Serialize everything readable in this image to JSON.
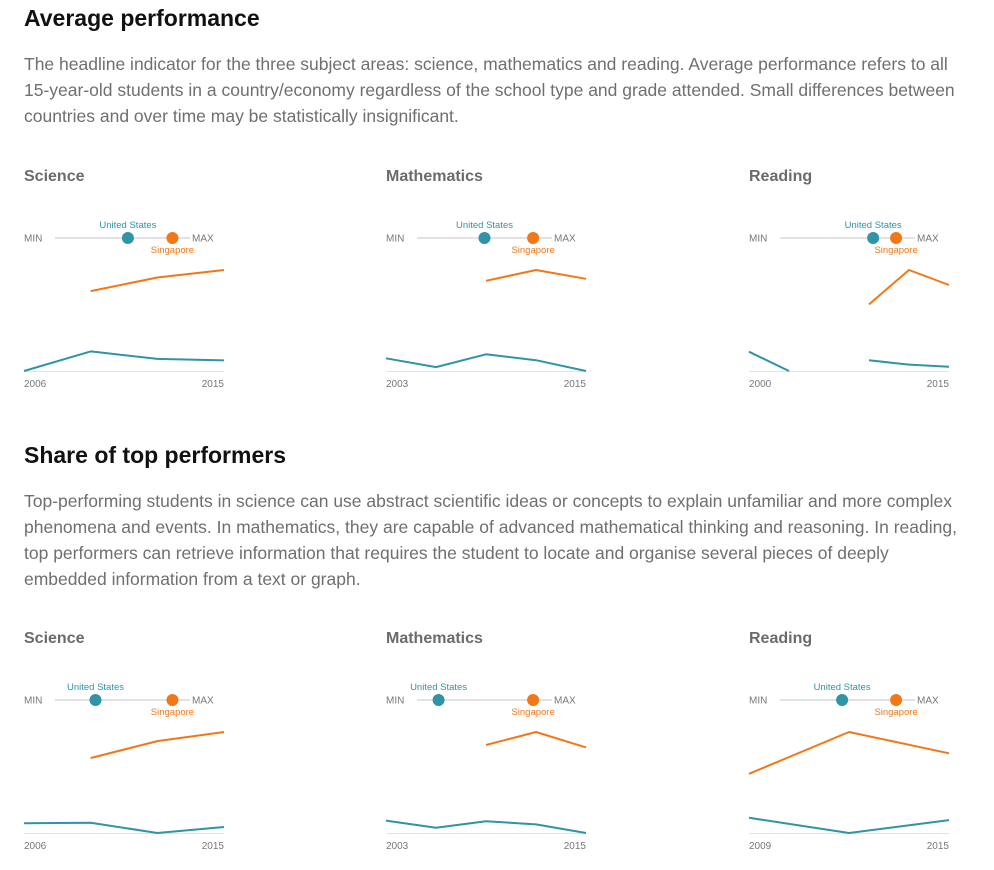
{
  "sections": [
    {
      "title": "Average performance",
      "description": "The headline indicator for the three subject areas: science, mathematics and reading. Average performance refers to all 15-year-old students in a country/economy regardless of the school type and grade attended. Small differences between countries and over time may be statistically insignificant.",
      "charts": [
        {
          "title": "Science",
          "min_label": "MIN",
          "max_label": "MAX",
          "us_position": 0.54,
          "sg_position": 0.87
        },
        {
          "title": "Mathematics",
          "min_label": "MIN",
          "max_label": "MAX",
          "us_position": 0.5,
          "sg_position": 0.86
        },
        {
          "title": "Reading",
          "min_label": "MIN",
          "max_label": "MAX",
          "us_position": 0.69,
          "sg_position": 0.86
        }
      ]
    },
    {
      "title": "Share of top performers",
      "description": "Top-performing students in science can use abstract scientific ideas or concepts to explain unfamiliar and more complex phenomena and events. In mathematics, they are capable of advanced mathematical thinking and reasoning. In reading, top performers can retrieve information that requires the student to locate and organise several pieces of deeply embedded information from a text or graph.",
      "charts": [
        {
          "title": "Science",
          "min_label": "MIN",
          "max_label": "MAX",
          "us_position": 0.3,
          "sg_position": 0.87
        },
        {
          "title": "Mathematics",
          "min_label": "MIN",
          "max_label": "MAX",
          "us_position": 0.16,
          "sg_position": 0.86
        },
        {
          "title": "Reading",
          "min_label": "MIN",
          "max_label": "MAX",
          "us_position": 0.46,
          "sg_position": 0.86
        }
      ]
    }
  ],
  "legend": {
    "us": "United States",
    "sg": "Singapore"
  },
  "colors": {
    "us": "#2e94a6",
    "sg": "#f07818",
    "track": "#d9d9d9",
    "baseline": "#e3e3e3"
  },
  "chart_data": [
    {
      "type": "line",
      "title": "Science",
      "x": [
        "2006",
        "2009",
        "2012",
        "2015"
      ],
      "series": [
        {
          "name": "United States",
          "values": [
            489,
            502,
            497,
            496
          ]
        },
        {
          "name": "Singapore",
          "values": [
            null,
            542,
            551,
            556
          ]
        }
      ],
      "x_tick_labels": [
        "2006",
        "2015"
      ],
      "ylim": [
        489,
        556
      ]
    },
    {
      "type": "line",
      "title": "Mathematics",
      "x": [
        "2003",
        "2006",
        "2009",
        "2012",
        "2015"
      ],
      "series": [
        {
          "name": "United States",
          "values": [
            483,
            474,
            487,
            481,
            470
          ]
        },
        {
          "name": "Singapore",
          "values": [
            null,
            null,
            562,
            573,
            564
          ]
        }
      ],
      "x_tick_labels": [
        "2003",
        "2015"
      ],
      "ylim": [
        470,
        573
      ]
    },
    {
      "type": "line",
      "title": "Reading",
      "x": [
        "2000",
        "2003",
        "2006",
        "2009",
        "2012",
        "2015"
      ],
      "series": [
        {
          "name": "United States",
          "values": [
            504,
            495,
            null,
            500,
            498,
            497
          ]
        },
        {
          "name": "Singapore",
          "values": [
            null,
            null,
            null,
            526,
            542,
            535
          ]
        }
      ],
      "x_tick_labels": [
        "2000",
        "2015"
      ],
      "ylim": [
        495,
        542
      ]
    },
    {
      "type": "line",
      "title": "Science",
      "x": [
        "2006",
        "2009",
        "2012",
        "2015"
      ],
      "series": [
        {
          "name": "United States",
          "values": [
            9.1,
            9.2,
            7.5,
            8.5
          ]
        },
        {
          "name": "Singapore",
          "values": [
            null,
            19.9,
            22.7,
            24.2
          ]
        }
      ],
      "x_tick_labels": [
        "2006",
        "2015"
      ],
      "ylim": [
        7.5,
        24.2
      ]
    },
    {
      "type": "line",
      "title": "Mathematics",
      "x": [
        "2003",
        "2006",
        "2009",
        "2012",
        "2015"
      ],
      "series": [
        {
          "name": "United States",
          "values": [
            10.1,
            7.7,
            9.9,
            8.8,
            5.9
          ]
        },
        {
          "name": "Singapore",
          "values": [
            null,
            null,
            35.6,
            40.0,
            34.8
          ]
        }
      ],
      "x_tick_labels": [
        "2003",
        "2015"
      ],
      "ylim": [
        5.9,
        40.0
      ]
    },
    {
      "type": "line",
      "title": "Reading",
      "x": [
        "2009",
        "2012",
        "2015"
      ],
      "series": [
        {
          "name": "United States",
          "values": [
            9.9,
            7.9,
            9.6
          ]
        },
        {
          "name": "Singapore",
          "values": [
            15.7,
            21.2,
            18.4
          ]
        }
      ],
      "x_tick_labels": [
        "2009",
        "2015"
      ],
      "ylim": [
        7.9,
        21.2
      ]
    }
  ]
}
